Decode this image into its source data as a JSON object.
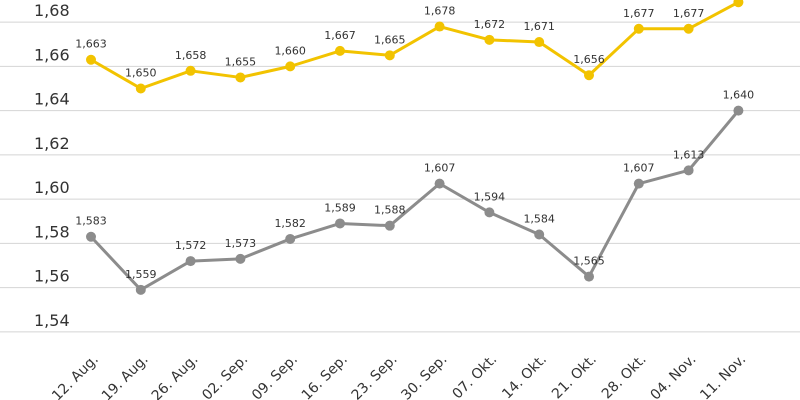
{
  "chart_data": {
    "type": "line",
    "title": "",
    "xlabel": "",
    "ylabel": "",
    "ylim": [
      1.53,
      1.69
    ],
    "y_ticks": [
      "1,54",
      "1,56",
      "1,58",
      "1,60",
      "1,62",
      "1,64",
      "1,66",
      "1,68"
    ],
    "y_tick_values": [
      1.54,
      1.56,
      1.58,
      1.6,
      1.62,
      1.64,
      1.66,
      1.68
    ],
    "categories": [
      "12. Aug.",
      "19. Aug.",
      "26. Aug.",
      "02. Sep.",
      "09. Sep.",
      "16. Sep.",
      "23. Sep.",
      "30. Sep.",
      "07. Okt.",
      "14. Okt.",
      "21. Okt.",
      "28. Okt.",
      "04. Nov.",
      "11. Nov."
    ],
    "grid": true,
    "legend": "none",
    "series": [
      {
        "name": "yellow",
        "color": "#f2c300",
        "values": [
          1.663,
          1.65,
          1.658,
          1.655,
          1.66,
          1.667,
          1.665,
          1.678,
          1.672,
          1.671,
          1.656,
          1.677,
          1.677,
          1.689
        ],
        "labels": [
          "1,663",
          "1,650",
          "1,658",
          "1,655",
          "1,660",
          "1,667",
          "1,665",
          "1,678",
          "1,672",
          "1,671",
          "1,656",
          "1,677",
          "1,677",
          ""
        ]
      },
      {
        "name": "grey",
        "color": "#8c8c8c",
        "values": [
          1.583,
          1.559,
          1.572,
          1.573,
          1.582,
          1.589,
          1.588,
          1.607,
          1.594,
          1.584,
          1.565,
          1.607,
          1.613,
          1.64
        ],
        "labels": [
          "1,583",
          "1,559",
          "1,572",
          "1,573",
          "1,582",
          "1,589",
          "1,588",
          "1,607",
          "1,594",
          "1,584",
          "1,565",
          "1,607",
          "1,613",
          "1,640"
        ]
      }
    ]
  }
}
